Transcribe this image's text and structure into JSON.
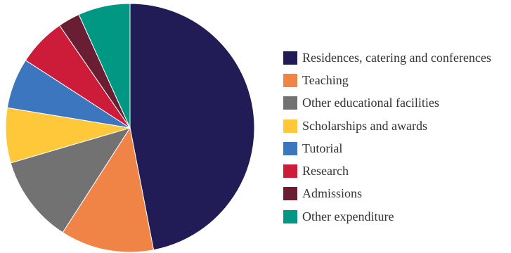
{
  "chart_data": {
    "type": "pie",
    "title": "",
    "series": [
      {
        "name": "Residences, catering and conferences",
        "value": 48.0,
        "color": "#211c55"
      },
      {
        "name": "Teaching",
        "value": 12.4,
        "color": "#f08346"
      },
      {
        "name": "Other educational facilities",
        "value": 11.6,
        "color": "#727272"
      },
      {
        "name": "Scholarships and awards",
        "value": 7.3,
        "color": "#fec83a"
      },
      {
        "name": "Tutorial",
        "value": 6.7,
        "color": "#3c76be"
      },
      {
        "name": "Research",
        "value": 6.4,
        "color": "#cc1c39"
      },
      {
        "name": "Admissions",
        "value": 2.9,
        "color": "#691e33"
      },
      {
        "name": "Other expenditure",
        "value": 6.9,
        "color": "#019883"
      }
    ],
    "legend_position": "right",
    "start_angle": "12 o'clock",
    "direction": "clockwise"
  }
}
